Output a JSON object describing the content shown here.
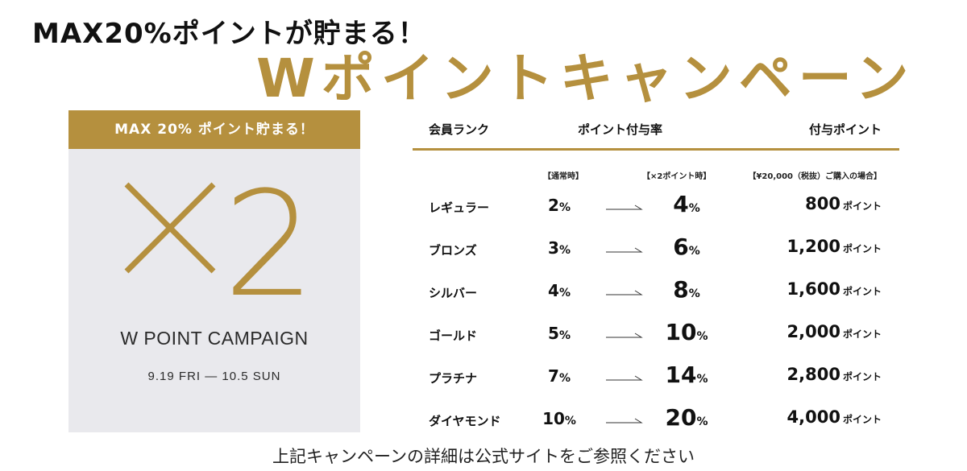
{
  "headline": {
    "sub": "MAX20%ポイントが貯まる！",
    "main": "Wポイントキャンペーン"
  },
  "card": {
    "banner": "MAX 20% ポイント貯まる！",
    "multiplier": "2",
    "title": "W POINT CAMPAIGN",
    "dates": "9.19 FRI ― 10.5 SUN",
    "icon": "multiply-icon"
  },
  "table": {
    "headers": {
      "rank": "会員ランク",
      "rate": "ポイント付与率",
      "points": "付与ポイント"
    },
    "subheaders": {
      "normal": "【通常時】",
      "double": "【×2ポイント時】",
      "example": "【¥20,000（税抜）ご購入の場合】"
    },
    "point_unit": "ポイント",
    "percent_sign": "%",
    "rows": [
      {
        "rank": "レギュラー",
        "normal": "2",
        "double": "4",
        "points": "800"
      },
      {
        "rank": "ブロンズ",
        "normal": "3",
        "double": "6",
        "points": "1,200"
      },
      {
        "rank": "シルバー",
        "normal": "4",
        "double": "8",
        "points": "1,600"
      },
      {
        "rank": "ゴールド",
        "normal": "5",
        "double": "10",
        "points": "2,000"
      },
      {
        "rank": "プラチナ",
        "normal": "7",
        "double": "14",
        "points": "2,800"
      },
      {
        "rank": "ダイヤモンド",
        "normal": "10",
        "double": "20",
        "points": "4,000"
      }
    ]
  },
  "footer": {
    "note": "上記キャンペーンの詳細は公式サイトをご参照ください"
  },
  "colors": {
    "gold": "#b5903e",
    "card_bg": "#e9e9ed",
    "text": "#111111"
  }
}
